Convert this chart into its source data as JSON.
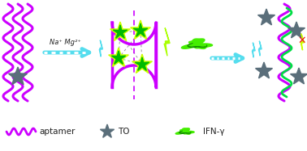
{
  "background_color": "#ffffff",
  "aptamer_color": "#cc00ff",
  "aptamer_color2": "#00dd44",
  "to_color": "#5a6e7a",
  "ifn_color": "#44ee00",
  "arrow_color": "#55ddee",
  "lightning_color": "#55ddee",
  "lightning_bright_color": "#ccff00",
  "star_outline_color": "#ddff00",
  "dna_hairpin_color": "#cc00ff",
  "dashed_line_color": "#999999",
  "red_x_color": "#ee1111",
  "na_mg_text": "Na⁺ Mg²⁺",
  "legend_aptamer": "aptamer",
  "legend_to": "TO",
  "legend_ifn": "IFN-γ",
  "legend_fontsize": 7.5
}
